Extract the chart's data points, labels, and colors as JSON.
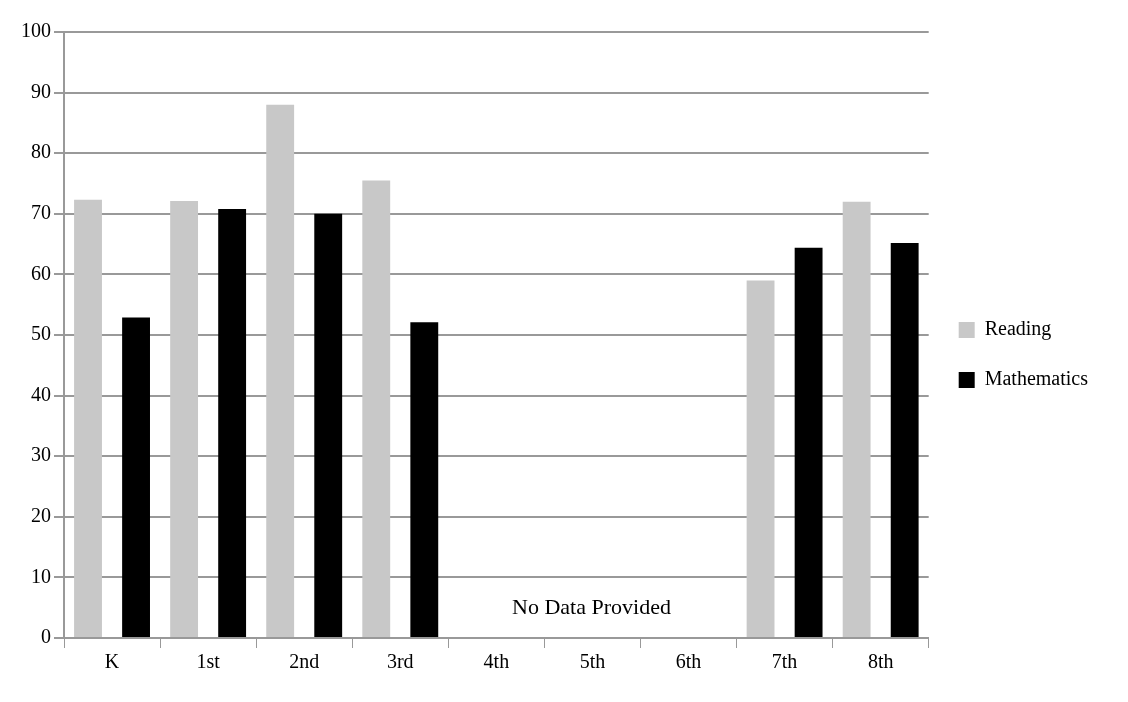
{
  "chart_data": {
    "type": "bar",
    "categories": [
      "K",
      "1st",
      "2nd",
      "3rd",
      "4th",
      "5th",
      "6th",
      "7th",
      "8th"
    ],
    "series": [
      {
        "name": "Reading",
        "color": "#c8c8c8",
        "values": [
          72.3,
          72.1,
          88,
          75.5,
          null,
          null,
          null,
          59,
          72
        ]
      },
      {
        "name": "Mathematics",
        "color": "#000000",
        "values": [
          52.9,
          70.8,
          70,
          52.1,
          null,
          null,
          null,
          64.4,
          65.2
        ]
      }
    ],
    "ylim": [
      0,
      100
    ],
    "yticks": [
      0,
      10,
      20,
      30,
      40,
      50,
      60,
      70,
      80,
      90,
      100
    ],
    "grid": "y",
    "legend": "right",
    "annotations": [
      "No Data Provided"
    ]
  }
}
